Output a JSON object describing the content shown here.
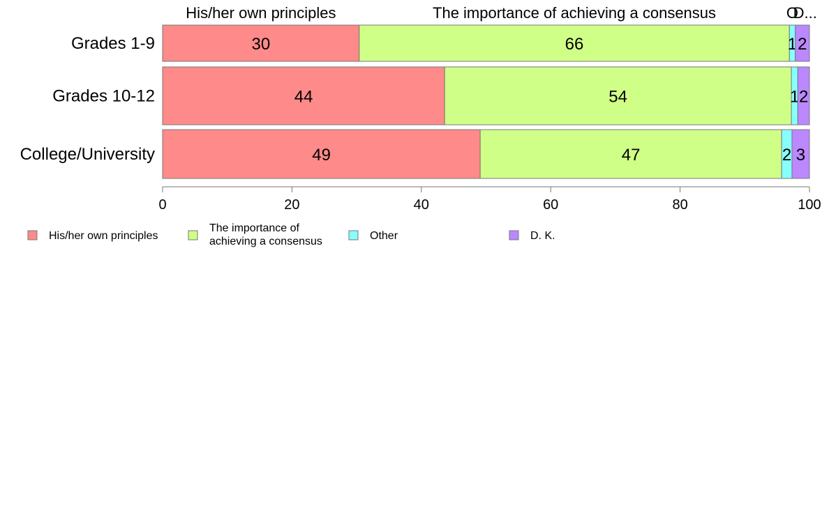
{
  "chart_data": {
    "type": "bar",
    "orientation": "horizontal",
    "stacked": true,
    "categories": [
      "Grades 1-9",
      "Grades 10-12",
      "College/University"
    ],
    "series": [
      {
        "name": "His/her own principles",
        "color": "#ff8a8a",
        "values": [
          30.4,
          43.6,
          49.1
        ]
      },
      {
        "name": "The importance of achieving a consensus",
        "color": "#d0ff88",
        "values": [
          66.5,
          53.6,
          46.6
        ]
      },
      {
        "name": "Other",
        "color": "#88ffff",
        "values": [
          0.9,
          1.0,
          1.6
        ]
      },
      {
        "name": "D. K.",
        "color": "#bb88ff",
        "values": [
          2.2,
          1.8,
          2.7
        ]
      }
    ],
    "data_labels": [
      [
        "30",
        "66",
        "1",
        "2"
      ],
      [
        "44",
        "54",
        "1",
        "2"
      ],
      [
        "49",
        "47",
        "2",
        "3"
      ]
    ],
    "top_labels": [
      "His/her own principles",
      "The importance of achieving a consensus",
      "Other",
      "D. K."
    ],
    "top_labels_displayed": [
      "His/her own principles",
      "The importance of achieving a consensus",
      "O",
      "D..."
    ],
    "legend_labels": [
      [
        "His/her own principles"
      ],
      [
        "The importance of",
        "achieving a consensus"
      ],
      [
        "Other"
      ],
      [
        "D. K."
      ]
    ],
    "xlim": [
      0,
      100
    ],
    "xticks": [
      0,
      20,
      40,
      60,
      80,
      100
    ],
    "xtick_labels": [
      "0",
      "20",
      "40",
      "60",
      "80",
      "100"
    ],
    "xlabel": "",
    "ylabel": "",
    "title": "",
    "grid": false,
    "legend_position": "bottom-left"
  }
}
